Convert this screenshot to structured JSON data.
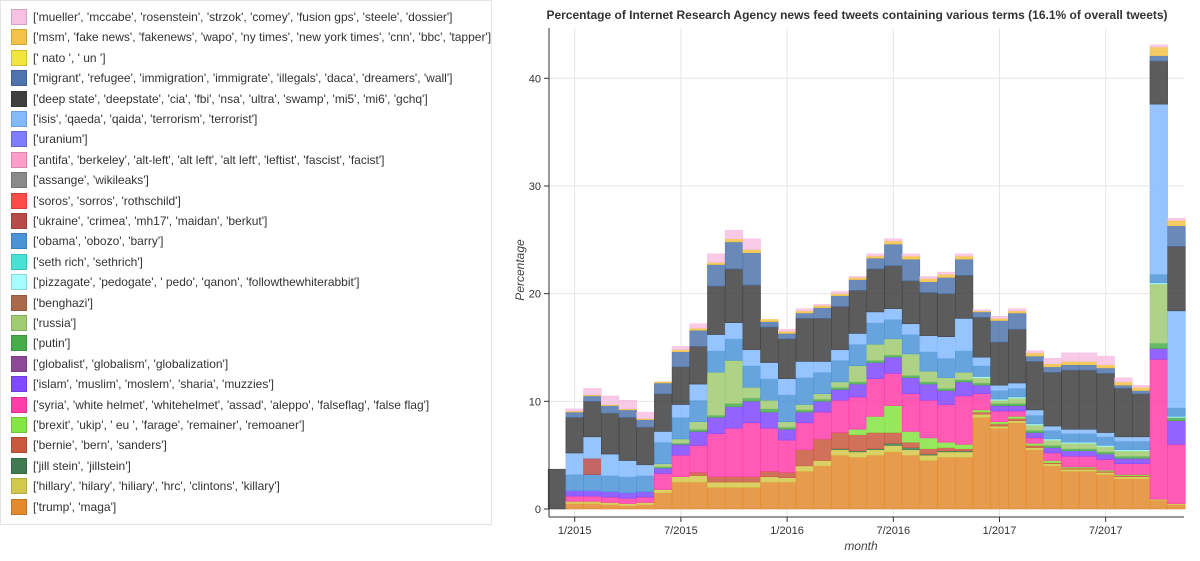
{
  "chart_data": {
    "type": "bar",
    "stacked": true,
    "title": "Percentage of Internet Research Agency news feed tweets containing various terms (16.1% of overall tweets)",
    "xlabel": "month",
    "ylabel": "Percentage",
    "ylim": [
      0,
      45
    ],
    "yticks": [
      0,
      10,
      20,
      30,
      40
    ],
    "xticks": [
      {
        "label": "1/2015",
        "index": 1
      },
      {
        "label": "7/2015",
        "index": 7
      },
      {
        "label": "1/2016",
        "index": 13
      },
      {
        "label": "7/2016",
        "index": 19
      },
      {
        "label": "1/2017",
        "index": 25
      },
      {
        "label": "7/2017",
        "index": 31
      }
    ],
    "categories": [
      "12/2014",
      "1/2015",
      "2/2015",
      "3/2015",
      "4/2015",
      "5/2015",
      "6/2015",
      "7/2015",
      "8/2015",
      "9/2015",
      "10/2015",
      "11/2015",
      "12/2015",
      "1/2016",
      "2/2016",
      "3/2016",
      "4/2016",
      "5/2016",
      "6/2016",
      "7/2016",
      "8/2016",
      "9/2016",
      "10/2016",
      "11/2016",
      "12/2016",
      "1/2017",
      "2/2017",
      "3/2017",
      "4/2017",
      "5/2017",
      "6/2017",
      "7/2017",
      "8/2017",
      "9/2017",
      "10/2017",
      "11/2017"
    ],
    "legend_position": "left",
    "series": [
      {
        "name": "['trump', 'maga']",
        "color": "#e38a2e",
        "values": [
          0,
          0.5,
          0.5,
          0.4,
          0.3,
          0.4,
          1.5,
          2.5,
          2.5,
          2.0,
          2.0,
          2.0,
          2.5,
          2.5,
          3.5,
          4.0,
          5.0,
          4.8,
          5.0,
          5.3,
          5.0,
          4.5,
          4.8,
          4.8,
          8.5,
          7.5,
          8.0,
          5.5,
          4.0,
          3.5,
          3.5,
          3.2,
          2.8,
          2.8,
          0.8,
          0.4
        ]
      },
      {
        "name": "['hillary', 'hilary', 'hiliary', 'hrc', 'clintons', 'killary']",
        "color": "#d2c94a",
        "values": [
          0,
          0.2,
          0.2,
          0.2,
          0.2,
          0.2,
          0.3,
          0.5,
          0.6,
          0.5,
          0.5,
          0.5,
          0.5,
          0.4,
          0.5,
          0.5,
          0.5,
          0.5,
          0.5,
          0.6,
          0.5,
          0.5,
          0.5,
          0.5,
          0.3,
          0.2,
          0.2,
          0.2,
          0.2,
          0.2,
          0.2,
          0.2,
          0.2,
          0.2,
          0.1,
          0.1
        ]
      },
      {
        "name": "['jill stein', 'jillstein']",
        "color": "#3f7a52",
        "values": [
          0,
          0,
          0,
          0,
          0,
          0,
          0,
          0,
          0,
          0,
          0,
          0,
          0,
          0,
          0,
          0,
          0.1,
          0.1,
          0.1,
          0.2,
          0.2,
          0.1,
          0.1,
          0.1,
          0,
          0,
          0,
          0,
          0,
          0,
          0,
          0,
          0,
          0,
          0,
          0
        ]
      },
      {
        "name": "['bernie', 'bern', 'sanders']",
        "color": "#c9583f",
        "values": [
          0,
          0,
          0,
          0,
          0,
          0,
          0,
          0,
          0.3,
          0.5,
          0.5,
          0.5,
          0.5,
          0.5,
          1.5,
          2.0,
          1.5,
          1.5,
          1.5,
          1.0,
          0.5,
          0.5,
          0.3,
          0.2,
          0.2,
          0.2,
          0.2,
          0.2,
          0.1,
          0.1,
          0.1,
          0.1,
          0.1,
          0.1,
          0,
          0
        ]
      },
      {
        "name": "['brexit', 'ukip', ' eu ', 'farage', 'remainer', 'remoaner']",
        "color": "#84e543",
        "values": [
          0,
          0,
          0,
          0,
          0,
          0,
          0,
          0,
          0,
          0,
          0,
          0,
          0,
          0,
          0,
          0,
          0,
          0.5,
          1.5,
          2.5,
          1.0,
          1.0,
          0.5,
          0.4,
          0.2,
          0.2,
          0.2,
          0.2,
          0.2,
          0.1,
          0.1,
          0.1,
          0.1,
          0.1,
          0,
          0
        ]
      },
      {
        "name": "['syria', 'white helmet', 'whitehelmet', 'assad', 'aleppo', 'falseflag', 'false flag']",
        "color": "#ff3da8",
        "values": [
          0,
          0.5,
          0.5,
          0.5,
          0.5,
          0.5,
          1.5,
          2.0,
          2.5,
          4.0,
          4.5,
          5.0,
          4.0,
          3.0,
          2.5,
          2.5,
          3.0,
          3.0,
          3.5,
          3.0,
          3.5,
          3.5,
          3.5,
          4.5,
          1.5,
          1.0,
          0.5,
          0.5,
          0.7,
          1.0,
          1.0,
          1.0,
          1.0,
          1.0,
          13.0,
          5.5
        ]
      },
      {
        "name": "['islam', 'muslim', 'moslem', 'sharia', 'muzzies']",
        "color": "#8048ff",
        "values": [
          0,
          0.5,
          0.5,
          0.5,
          0.5,
          0.5,
          0.5,
          1.0,
          1.3,
          1.5,
          2.0,
          2.0,
          1.5,
          1.0,
          1.0,
          1.0,
          1.0,
          1.2,
          1.5,
          1.5,
          1.5,
          1.5,
          1.3,
          1.3,
          0.8,
          0.5,
          0.5,
          0.5,
          0.5,
          0.5,
          0.5,
          0.5,
          0.5,
          0.5,
          1.0,
          2.2
        ]
      },
      {
        "name": "['globalist', 'globalism', 'globalization']",
        "color": "#8c4a96",
        "values": [
          0,
          0,
          0,
          0,
          0,
          0,
          0,
          0,
          0,
          0,
          0,
          0,
          0,
          0,
          0,
          0,
          0,
          0,
          0,
          0,
          0,
          0,
          0,
          0,
          0,
          0,
          0,
          0,
          0,
          0,
          0,
          0,
          0,
          0,
          0,
          0
        ]
      },
      {
        "name": "['putin']",
        "color": "#47ad4b",
        "values": [
          0,
          0,
          0,
          0,
          0,
          0,
          0.1,
          0.1,
          0.2,
          0.2,
          0.3,
          0.3,
          0.3,
          0.2,
          0.2,
          0.2,
          0.2,
          0.2,
          0.2,
          0.2,
          0.2,
          0.2,
          0.2,
          0.2,
          0.2,
          0.2,
          0.2,
          0.2,
          0.2,
          0.2,
          0.2,
          0.2,
          0.2,
          0.2,
          0.5,
          0.3
        ]
      },
      {
        "name": "['russia']",
        "color": "#a0cb72",
        "values": [
          0,
          0,
          0,
          0,
          0,
          0,
          0.3,
          0.4,
          0.7,
          4.0,
          4.0,
          1.0,
          0.8,
          0.5,
          0.5,
          0.5,
          0.5,
          1.5,
          1.5,
          1.5,
          2.0,
          1.0,
          1.0,
          0.7,
          0.5,
          0.3,
          0.5,
          0.5,
          0.5,
          0.5,
          0.5,
          0.5,
          0.5,
          0.5,
          5.5,
          0
        ]
      },
      {
        "name": "['benghazi']",
        "color": "#a96a4c",
        "values": [
          0,
          0,
          0,
          0,
          0,
          0,
          0,
          0,
          0,
          0,
          0,
          0,
          0,
          0,
          0,
          0,
          0,
          0,
          0,
          0,
          0,
          0,
          0,
          0,
          0,
          0,
          0,
          0,
          0,
          0,
          0,
          0,
          0,
          0,
          0,
          0
        ]
      },
      {
        "name": "['pizzagate', 'pedogate', ' pedo', 'qanon', 'followthewhiterabbit']",
        "color": "#a5fdfd",
        "values": [
          0,
          0,
          0,
          0,
          0,
          0,
          0,
          0,
          0,
          0,
          0,
          0,
          0,
          0,
          0,
          0,
          0,
          0,
          0,
          0,
          0,
          0,
          0,
          0,
          0.1,
          0.1,
          0.1,
          0.1,
          0.1,
          0.1,
          0.1,
          0.1,
          0.1,
          0.1,
          0.1,
          0.1
        ]
      },
      {
        "name": "['seth rich', 'sethrich']",
        "color": "#47e2d3",
        "values": [
          0,
          0,
          0,
          0,
          0,
          0,
          0,
          0,
          0,
          0,
          0,
          0,
          0,
          0,
          0,
          0,
          0,
          0,
          0,
          0,
          0,
          0,
          0,
          0,
          0,
          0,
          0,
          0,
          0,
          0,
          0,
          0,
          0,
          0,
          0,
          0
        ]
      },
      {
        "name": "['obama', 'obozo', 'barry']",
        "color": "#4c93d6",
        "values": [
          0,
          1.5,
          1.5,
          1.5,
          1.5,
          1.5,
          2.0,
          2.0,
          2.0,
          2.0,
          2.0,
          2.0,
          2.0,
          2.5,
          2.5,
          2.0,
          2.0,
          2.0,
          2.0,
          1.8,
          1.8,
          1.8,
          1.8,
          2.0,
          1.0,
          0.8,
          0.8,
          0.8,
          0.8,
          0.8,
          0.8,
          0.8,
          0.8,
          0.8,
          0.8,
          0.8
        ]
      },
      {
        "name": "['ukraine', 'crimea', 'mh17', 'maidan', 'berkut']",
        "color": "#b84a4a",
        "values": [
          0,
          0,
          1.5,
          0,
          0,
          0,
          0,
          0,
          0,
          0,
          0,
          0,
          0,
          0,
          0,
          0,
          0,
          0,
          0,
          0,
          0,
          0,
          0,
          0,
          0,
          0,
          0,
          0,
          0,
          0,
          0,
          0,
          0,
          0,
          0,
          0
        ]
      },
      {
        "name": "['soros', 'sorros', 'rothschild']",
        "color": "#ff4a4a",
        "values": [
          0,
          0,
          0,
          0,
          0,
          0,
          0,
          0,
          0,
          0,
          0,
          0,
          0,
          0,
          0,
          0,
          0,
          0,
          0,
          0,
          0,
          0,
          0,
          0,
          0,
          0,
          0,
          0,
          0,
          0,
          0,
          0,
          0,
          0,
          0,
          0
        ]
      },
      {
        "name": "['assange', 'wikileaks']",
        "color": "#8a8a8a",
        "values": [
          0,
          0,
          0,
          0,
          0,
          0,
          0,
          0,
          0,
          0,
          0,
          0,
          0,
          0,
          0,
          0,
          0,
          0,
          0,
          0,
          0,
          0,
          0,
          0,
          0,
          0,
          0,
          0,
          0,
          0,
          0,
          0,
          0,
          0,
          0,
          0
        ]
      },
      {
        "name": "['antifa', 'berkeley', 'alt-left', 'alt left', 'alt left', 'leftist', 'fascist', 'facist']",
        "color": "#ff9ecb",
        "values": [
          0,
          0,
          0,
          0,
          0,
          0,
          0,
          0,
          0,
          0,
          0,
          0,
          0,
          0,
          0,
          0,
          0,
          0,
          0,
          0,
          0,
          0,
          0,
          0,
          0,
          0,
          0,
          0,
          0,
          0,
          0,
          0,
          0,
          0,
          0,
          0
        ]
      },
      {
        "name": "['uranium']",
        "color": "#7d7dfd",
        "values": [
          0,
          0,
          0,
          0,
          0,
          0,
          0,
          0,
          0,
          0,
          0,
          0,
          0,
          0,
          0,
          0,
          0,
          0,
          0,
          0,
          0,
          0,
          0,
          0,
          0,
          0,
          0,
          0,
          0,
          0,
          0,
          0,
          0,
          0,
          0,
          0
        ]
      },
      {
        "name": "['isis', 'qaeda', 'qaida', 'terrorism', 'terrorist']",
        "color": "#83baff",
        "values": [
          0,
          2.0,
          2.0,
          2.0,
          1.5,
          1.0,
          1.0,
          1.2,
          1.5,
          1.5,
          1.5,
          1.5,
          1.5,
          1.5,
          1.5,
          1.0,
          1.0,
          1.0,
          1.0,
          1.0,
          1.0,
          1.5,
          2.0,
          3.0,
          0.8,
          0.5,
          0.5,
          0.5,
          0.4,
          0.4,
          0.4,
          0.4,
          0.4,
          0.4,
          15.8,
          9.0
        ]
      },
      {
        "name": "['deep state', 'deepstate', 'cia', 'fbi', 'nsa', 'ultra', 'swamp', 'mi5', 'mi6', 'gchq']",
        "color": "#404040",
        "values": [
          3.7,
          3.3,
          3.3,
          3.8,
          4.0,
          3.5,
          3.5,
          3.5,
          3.5,
          4.5,
          5.0,
          6.0,
          3.3,
          3.7,
          4.0,
          4.0,
          4.0,
          4.0,
          4.0,
          4.0,
          4.0,
          4.0,
          4.0,
          4.0,
          3.7,
          4.0,
          5.0,
          4.5,
          5.0,
          5.5,
          5.5,
          5.5,
          4.5,
          4.0,
          4.0,
          6.0
        ]
      },
      {
        "name": "['migrant', 'refugee', 'immigration', 'immigrate', 'illegals', 'daca', 'dreamers', 'wall']",
        "color": "#4f74ad",
        "values": [
          0,
          0.5,
          0.5,
          0.7,
          0.7,
          0.7,
          1.0,
          1.4,
          1.5,
          2.0,
          2.5,
          3.0,
          0.5,
          0.5,
          0.5,
          1.0,
          1.0,
          1.0,
          1.0,
          2.0,
          2.0,
          1.0,
          1.5,
          1.5,
          0.5,
          2.0,
          1.5,
          0.5,
          0.5,
          0.5,
          0.5,
          0.5,
          0.3,
          0.3,
          0.5,
          1.9
        ]
      },
      {
        "name": "[' nato ', ' un ']",
        "color": "#f1e63e",
        "values": [
          0,
          0,
          0,
          0,
          0,
          0,
          0,
          0,
          0,
          0,
          0,
          0,
          0,
          0,
          0,
          0,
          0,
          0,
          0,
          0,
          0,
          0,
          0,
          0,
          0,
          0,
          0,
          0,
          0,
          0,
          0,
          0,
          0,
          0,
          0,
          0
        ]
      },
      {
        "name": "['msm', 'fake news', 'fakenews', 'wapo', 'ny times', 'new york times', 'cnn', 'bbc', 'tapper']",
        "color": "#f3c348",
        "values": [
          0,
          0.1,
          0.1,
          0.1,
          0.1,
          0.1,
          0.1,
          0.2,
          0.2,
          0.2,
          0.3,
          0.3,
          0.2,
          0.2,
          0.2,
          0.2,
          0.2,
          0.2,
          0.2,
          0.3,
          0.3,
          0.3,
          0.3,
          0.3,
          0.1,
          0.2,
          0.2,
          0.3,
          0.3,
          0.3,
          0.3,
          0.3,
          0.3,
          0.3,
          0.8,
          0.5
        ]
      },
      {
        "name": "['mueller', 'mccabe', 'rosenstein', 'strzok', 'comey', 'fusion gps', 'steele', 'dossier']",
        "color": "#f7c1e2",
        "values": [
          0,
          0.2,
          0.6,
          0.8,
          0.8,
          0.6,
          0,
          0.3,
          0.4,
          0.8,
          0.8,
          1.0,
          0,
          0.2,
          0.2,
          0.1,
          0.2,
          0.1,
          0.2,
          0.2,
          0.2,
          0.2,
          0.2,
          0.2,
          0.1,
          0.2,
          0.2,
          0.2,
          0.5,
          0.8,
          0.8,
          0.8,
          0.4,
          0.2,
          0.2,
          0.2
        ]
      }
    ]
  }
}
